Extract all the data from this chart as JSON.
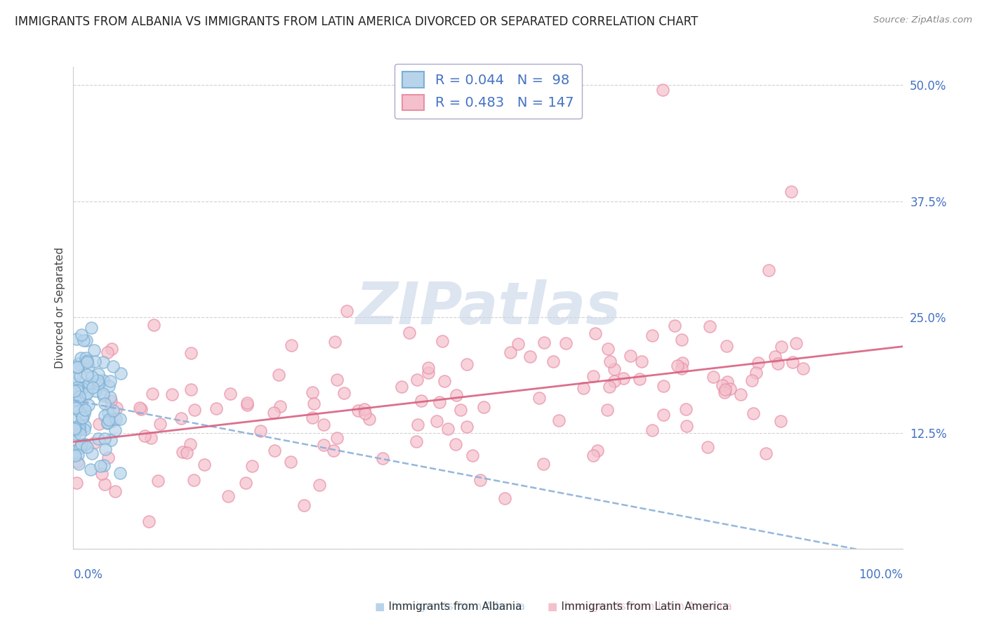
{
  "title": "IMMIGRANTS FROM ALBANIA VS IMMIGRANTS FROM LATIN AMERICA DIVORCED OR SEPARATED CORRELATION CHART",
  "source": "Source: ZipAtlas.com",
  "ylabel": "Divorced or Separated",
  "yticks": [
    0.0,
    0.125,
    0.25,
    0.375,
    0.5
  ],
  "ytick_labels": [
    "",
    "12.5%",
    "25.0%",
    "37.5%",
    "50.0%"
  ],
  "albania_edge_color": "#7ab0d4",
  "albania_face_color": "#b8d4eb",
  "latam_edge_color": "#e890a8",
  "latam_face_color": "#f4c0cc",
  "albania_R": 0.044,
  "albania_N": 98,
  "latam_R": 0.483,
  "latam_N": 147,
  "trendline_albania_color": "#8ab0d8",
  "trendline_latam_color": "#d86080",
  "watermark_color": "#ccd8e8",
  "background_color": "#ffffff",
  "grid_color": "#cccccc",
  "title_color": "#222222",
  "title_fontsize": 12,
  "ylabel_color": "#444444",
  "tick_color": "#4472c4",
  "source_color": "#888888",
  "legend_label_albania": "R = 0.044   N =  98",
  "legend_label_latam": "R = 0.483   N = 147",
  "legend_color_albania": "#4472c4",
  "legend_color_latam": "#4472c4",
  "bottom_label_albania": "Immigrants from Albania",
  "bottom_label_latam": "Immigrants from Latin America",
  "bottom_sq_albania": "#b8d4eb",
  "bottom_sq_latam": "#f4c0cc"
}
